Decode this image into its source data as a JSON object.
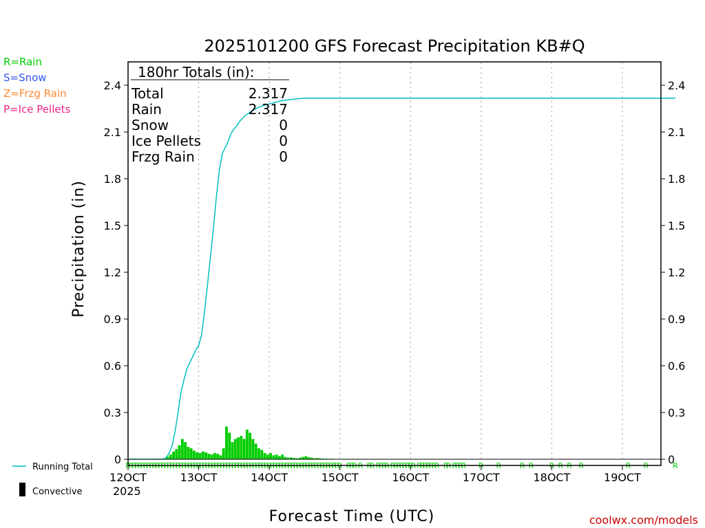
{
  "chart_data": {
    "type": "bar",
    "title": "2025101200 GFS Forecast Precipitation KB#Q",
    "xlabel": "Forecast Time (UTC)",
    "ylabel": "Precipitation (in)",
    "ylim": [
      0,
      2.55
    ],
    "xlim_hours": [
      0,
      186
    ],
    "y_ticks": [
      "0",
      "0.3",
      "0.6",
      "0.9",
      "1.2",
      "1.5",
      "1.8",
      "2.1",
      "2.4"
    ],
    "y_tick_values": [
      0,
      0.3,
      0.6,
      0.9,
      1.2,
      1.5,
      1.8,
      2.1,
      2.4
    ],
    "x_ticks": [
      {
        "label": "12OCT",
        "hour": 0
      },
      {
        "label": "13OCT",
        "hour": 24
      },
      {
        "label": "14OCT",
        "hour": 48
      },
      {
        "label": "15OCT",
        "hour": 72
      },
      {
        "label": "16OCT",
        "hour": 96
      },
      {
        "label": "17OCT",
        "hour": 120
      },
      {
        "label": "18OCT",
        "hour": 144
      },
      {
        "label": "19OCT",
        "hour": 168
      }
    ],
    "year_label": "2025",
    "type_legend": [
      {
        "label": "R=Rain",
        "color": "#00cc00"
      },
      {
        "label": "S=Snow",
        "color": "#3355ee"
      },
      {
        "label": "Z=Frzg Rain",
        "color": "#ff8833"
      },
      {
        "label": "P=Ice Pellets",
        "color": "#ee2288"
      }
    ],
    "series_legend": [
      {
        "label": "Running Total",
        "color": "#00bfbf"
      },
      {
        "label": "Convective",
        "color": "#000000"
      }
    ],
    "totals": {
      "header": "180hr Totals (in):",
      "rows": [
        {
          "name": "Total",
          "value": "2.317"
        },
        {
          "name": "Rain",
          "value": "2.317"
        },
        {
          "name": "Snow",
          "value": "0"
        },
        {
          "name": "Ice Pellets",
          "value": "0"
        },
        {
          "name": "Frzg Rain",
          "value": "0"
        }
      ]
    },
    "bar_color": "#00cc00",
    "line_color": "#00bfbf",
    "step_hours": 1,
    "bar_start_hour": 12,
    "bars": [
      0.006,
      0.016,
      0.03,
      0.05,
      0.065,
      0.09,
      0.13,
      0.11,
      0.08,
      0.07,
      0.055,
      0.045,
      0.04,
      0.05,
      0.045,
      0.035,
      0.03,
      0.04,
      0.035,
      0.025,
      0.07,
      0.21,
      0.17,
      0.11,
      0.13,
      0.14,
      0.15,
      0.13,
      0.19,
      0.17,
      0.13,
      0.1,
      0.07,
      0.06,
      0.04,
      0.03,
      0.04,
      0.025,
      0.03,
      0.02,
      0.03,
      0.015,
      0.01,
      0.012,
      0.008,
      0.006,
      0.01,
      0.015,
      0.02,
      0.013,
      0.01,
      0.006,
      0.008,
      0.005,
      0.004,
      0.004,
      0.003,
      0.003,
      0.002,
      0.002,
      0.002,
      0.001,
      0.001,
      0.001,
      0.001,
      0.001,
      0.001,
      0.001,
      0.001,
      0.001
    ],
    "running_total": [
      [
        0,
        0
      ],
      [
        12,
        0
      ],
      [
        13,
        0.012
      ],
      [
        14,
        0.04
      ],
      [
        15,
        0.09
      ],
      [
        16,
        0.18
      ],
      [
        17,
        0.3
      ],
      [
        18,
        0.43
      ],
      [
        19,
        0.51
      ],
      [
        20,
        0.58
      ],
      [
        21,
        0.62
      ],
      [
        22,
        0.66
      ],
      [
        23,
        0.7
      ],
      [
        24,
        0.73
      ],
      [
        25,
        0.8
      ],
      [
        26,
        0.95
      ],
      [
        27,
        1.12
      ],
      [
        28,
        1.3
      ],
      [
        29,
        1.48
      ],
      [
        30,
        1.68
      ],
      [
        31,
        1.85
      ],
      [
        32,
        1.96
      ],
      [
        33,
        2.0
      ],
      [
        34,
        2.04
      ],
      [
        35,
        2.09
      ],
      [
        36,
        2.12
      ],
      [
        37,
        2.14
      ],
      [
        38,
        2.17
      ],
      [
        39,
        2.19
      ],
      [
        40,
        2.21
      ],
      [
        41,
        2.22
      ],
      [
        42,
        2.235
      ],
      [
        44,
        2.255
      ],
      [
        46,
        2.27
      ],
      [
        48,
        2.28
      ],
      [
        50,
        2.29
      ],
      [
        52,
        2.3
      ],
      [
        54,
        2.305
      ],
      [
        56,
        2.31
      ],
      [
        60,
        2.317
      ],
      [
        186,
        2.317
      ]
    ],
    "ptype_marks": {
      "letter": "R",
      "dense_range_hours": [
        0,
        72
      ],
      "sparse_hours": [
        75,
        76,
        77,
        79,
        82,
        83,
        85,
        86,
        87,
        88,
        90,
        91,
        92,
        93,
        94,
        95,
        96,
        97,
        99,
        100,
        101,
        102,
        103,
        104,
        105,
        108,
        109,
        111,
        112,
        113,
        114,
        120,
        126,
        134,
        137,
        144,
        147,
        150,
        154,
        170,
        176,
        186
      ]
    },
    "credit": "coolwx.com/models"
  }
}
